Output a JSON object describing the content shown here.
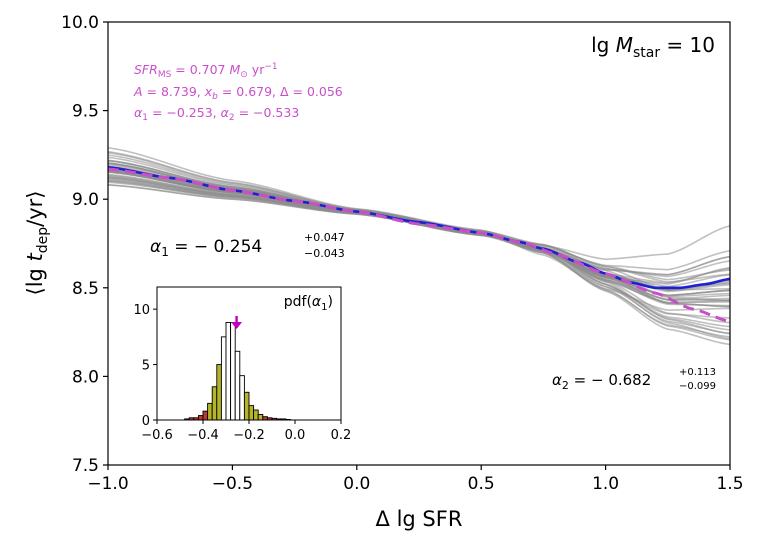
{
  "colors": {
    "ensemble": "#8c8c8c",
    "fit": "#1f1fd6",
    "model": "#c94fc9",
    "hist_center": "#ffffff",
    "hist_1sigma": "#b5b52a",
    "hist_2sigma": "#c0392b",
    "arrow": "#c000c0"
  },
  "chart_data": [
    {
      "type": "line",
      "title": "",
      "xlabel": "Δ lg SFR",
      "ylabel": "⟨lg t_dep/yr⟩",
      "xlim": [
        -1.0,
        1.5
      ],
      "ylim": [
        7.5,
        10.0
      ],
      "xticks": [
        -1.0,
        -0.5,
        0.0,
        0.5,
        1.0,
        1.5
      ],
      "xtick_labels": [
        "−1.0",
        "−0.5",
        "0.0",
        "0.5",
        "1.0",
        "1.5"
      ],
      "yticks": [
        7.5,
        8.0,
        8.5,
        9.0,
        9.5,
        10.0
      ],
      "ytick_labels": [
        "7.5",
        "8.0",
        "8.5",
        "9.0",
        "9.5",
        "10.0"
      ],
      "series": [
        {
          "name": "best fit (blue)",
          "style": "solid",
          "x": [
            -1.0,
            -0.75,
            -0.5,
            -0.25,
            0.0,
            0.25,
            0.5,
            0.65,
            0.75,
            0.9,
            1.0,
            1.1,
            1.2,
            1.3,
            1.4,
            1.5
          ],
          "y": [
            9.18,
            9.12,
            9.05,
            8.99,
            8.93,
            8.87,
            8.81,
            8.76,
            8.72,
            8.64,
            8.58,
            8.53,
            8.5,
            8.5,
            8.52,
            8.55
          ]
        },
        {
          "name": "broken power law model (magenta dashed)",
          "style": "dashed",
          "x": [
            -1.0,
            -0.75,
            -0.5,
            -0.25,
            0.0,
            0.25,
            0.5,
            0.679,
            0.8,
            1.0,
            1.2,
            1.35,
            1.5
          ],
          "y": [
            9.17,
            9.12,
            9.05,
            8.99,
            8.93,
            8.86,
            8.81,
            8.75,
            8.69,
            8.58,
            8.47,
            8.38,
            8.31
          ]
        }
      ],
      "ensemble": {
        "name": "bootstrap realisations (grey)",
        "count": 40,
        "knot_x": [
          -1.0,
          -0.5,
          0.0,
          0.5,
          0.75,
          1.0,
          1.25,
          1.5
        ]
      },
      "annotations": {
        "params_line1": "SFR_MS = 0.707 M⊙ yr⁻¹",
        "params_line2": "A = 8.739, x_b = 0.679, Δ = 0.056",
        "params_line3": "α1 = −0.253, α2 = −0.533",
        "mass_label": "lg M_star = 10",
        "alpha1_label": "α1 = −0.254 +0.047 −0.043",
        "alpha2_label": "α2 = −0.682 +0.113 −0.099"
      },
      "labels": {
        "param_sfr": "SFR",
        "param_sfr_sub": "MS",
        "param_sfr_rest": " = 0.707 ",
        "param_msun": "M",
        "param_msun_sym": "⊙",
        "param_yr": " yr",
        "param_yr_exp": "−1",
        "param_a": "A",
        "param_a_rest": " = 8.739, ",
        "param_xb": "x",
        "param_xb_sub": "b",
        "param_xb_rest": " = 0.679, Δ = 0.056",
        "param_alpha1": "α",
        "param_alpha1_sub": "1",
        "param_alpha1_rest": " = −0.253, ",
        "param_alpha2": "α",
        "param_alpha2_sub": "2",
        "param_alpha2_rest": " = −0.533",
        "mass_lg": "lg ",
        "mass_m": "M",
        "mass_sub": "star",
        "mass_rest": " = 10",
        "a1_alpha": "α",
        "a1_sub": "1",
        "a1_value": " = − 0.254",
        "a1_up": "+0.047",
        "a1_down": "−0.043",
        "a2_alpha": "α",
        "a2_sub": "2",
        "a2_value": " = − 0.682",
        "a2_up": "+0.113",
        "a2_down": "−0.099",
        "xlabel_delta": "Δ lg SFR",
        "ylabel_open": "⟨lg ",
        "ylabel_t": "t",
        "ylabel_sub": "dep",
        "ylabel_close": "/yr⟩"
      }
    },
    {
      "type": "bar",
      "name": "inset histogram",
      "title": "pdf(α1)",
      "title_prefix": "pdf(",
      "title_alpha": "α",
      "title_sub": "1",
      "title_suffix": ")",
      "xlabel": "",
      "ylabel": "",
      "xlim": [
        -0.6,
        0.2
      ],
      "ylim": [
        0,
        12
      ],
      "xticks": [
        -0.6,
        -0.4,
        -0.2,
        0.0,
        0.2
      ],
      "xtick_labels": [
        "−0.6",
        "−0.4",
        "−0.2",
        "0.0",
        "0.2"
      ],
      "yticks": [
        0,
        5,
        10
      ],
      "ytick_labels": [
        "0",
        "5",
        "10"
      ],
      "bin_width": 0.02,
      "bin_starts": [
        -0.48,
        -0.46,
        -0.44,
        -0.42,
        -0.4,
        -0.38,
        -0.36,
        -0.34,
        -0.32,
        -0.3,
        -0.28,
        -0.26,
        -0.24,
        -0.22,
        -0.2,
        -0.18,
        -0.16,
        -0.14,
        -0.12,
        -0.1,
        -0.08,
        -0.06,
        -0.04
      ],
      "values": [
        0.1,
        0.2,
        0.2,
        0.4,
        0.8,
        1.5,
        3.0,
        5.0,
        7.5,
        8.8,
        8.8,
        6.2,
        4.0,
        2.5,
        1.3,
        0.9,
        0.5,
        0.3,
        0.2,
        0.15,
        0.1,
        0.1,
        0.05
      ],
      "band": [
        "out",
        "out",
        "out",
        "2s",
        "2s",
        "1s",
        "1s",
        "1s",
        "c",
        "c",
        "c",
        "c",
        "c",
        "1s",
        "1s",
        "1s",
        "1s",
        "2s",
        "2s",
        "out",
        "out",
        "out",
        "out"
      ],
      "marker_x": -0.254
    }
  ]
}
